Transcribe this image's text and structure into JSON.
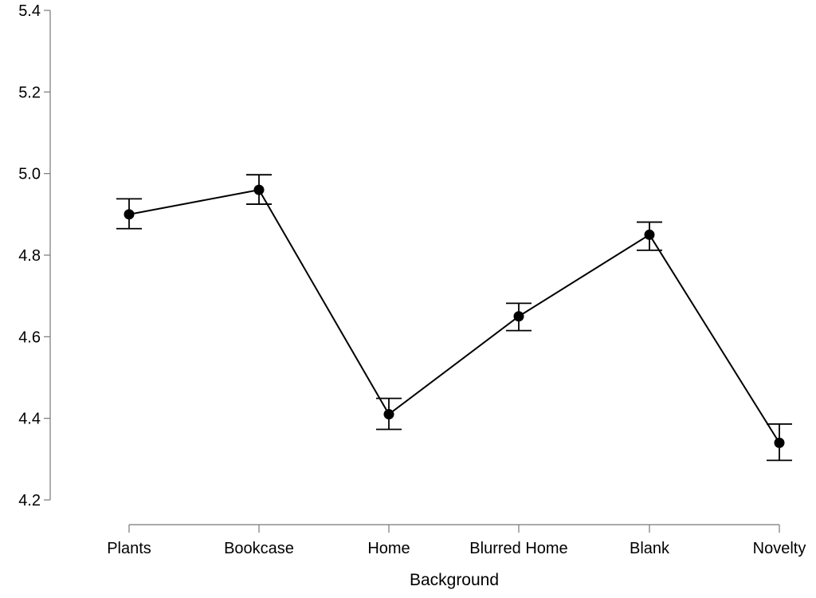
{
  "chart_data": {
    "type": "line",
    "title": "",
    "xlabel": "Background",
    "ylabel": "",
    "categories": [
      "Plants",
      "Bookcase",
      "Home",
      "Blurred Home",
      "Blank",
      "Novelty"
    ],
    "values": [
      4.9,
      4.96,
      4.41,
      4.65,
      4.85,
      4.34
    ],
    "error_low": [
      4.865,
      4.925,
      4.373,
      4.615,
      4.812,
      4.297
    ],
    "error_high": [
      4.938,
      4.997,
      4.449,
      4.682,
      4.881,
      4.386
    ],
    "ylim": [
      4.2,
      5.4
    ],
    "yticks": [
      "4.2",
      "4.4",
      "4.6",
      "4.8",
      "5.0",
      "5.2",
      "5.4"
    ],
    "grid": false,
    "colors": {
      "line": "#000000",
      "marker": "#000000",
      "axis": "#777777"
    }
  }
}
